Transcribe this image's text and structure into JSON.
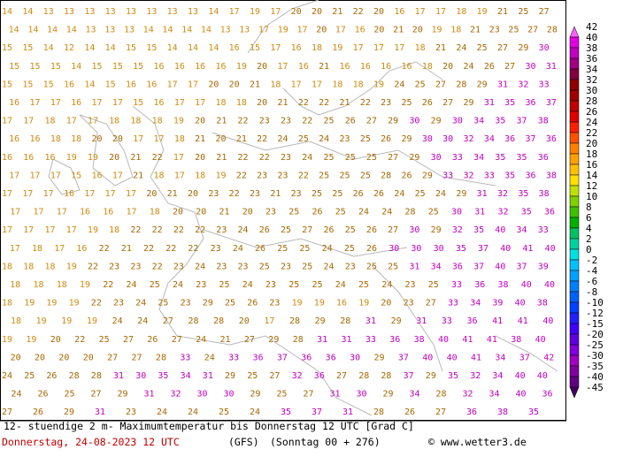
{
  "map": {
    "rows": [
      [
        14,
        14,
        13,
        13,
        13,
        13,
        13,
        13,
        13,
        13,
        14,
        17,
        19,
        17,
        20,
        20,
        21,
        22,
        20,
        16,
        17,
        17,
        18,
        19,
        21,
        25,
        27
      ],
      [
        14,
        14,
        14,
        14,
        13,
        13,
        13,
        14,
        14,
        14,
        14,
        13,
        13,
        17,
        19,
        17,
        20,
        17,
        16,
        20,
        21,
        20,
        19,
        18,
        21,
        23,
        25,
        27,
        28
      ],
      [
        15,
        15,
        14,
        12,
        14,
        14,
        15,
        15,
        14,
        14,
        14,
        16,
        15,
        17,
        16,
        18,
        19,
        17,
        17,
        17,
        18,
        21,
        24,
        25,
        27,
        29,
        30
      ],
      [
        15,
        15,
        15,
        14,
        15,
        15,
        15,
        16,
        16,
        16,
        16,
        19,
        20,
        17,
        16,
        21,
        16,
        16,
        16,
        16,
        18,
        20,
        24,
        26,
        27,
        30,
        31
      ],
      [
        15,
        15,
        15,
        16,
        14,
        15,
        16,
        16,
        17,
        17,
        20,
        20,
        21,
        18,
        17,
        17,
        18,
        18,
        19,
        24,
        25,
        27,
        28,
        29,
        31,
        32,
        33
      ],
      [
        16,
        17,
        17,
        16,
        17,
        17,
        15,
        16,
        17,
        17,
        18,
        18,
        20,
        21,
        22,
        22,
        21,
        22,
        23,
        25,
        26,
        27,
        29,
        31,
        35,
        36,
        37
      ],
      [
        17,
        17,
        18,
        17,
        17,
        18,
        18,
        18,
        19,
        20,
        21,
        22,
        23,
        23,
        22,
        25,
        26,
        27,
        29,
        30,
        29,
        30,
        34,
        35,
        37,
        38
      ],
      [
        16,
        16,
        18,
        18,
        20,
        20,
        17,
        17,
        18,
        21,
        20,
        21,
        22,
        24,
        25,
        24,
        23,
        25,
        26,
        29,
        30,
        30,
        32,
        34,
        36,
        37,
        36
      ],
      [
        16,
        16,
        16,
        19,
        19,
        20,
        21,
        22,
        17,
        20,
        21,
        22,
        22,
        23,
        24,
        25,
        25,
        25,
        27,
        29,
        30,
        33,
        34,
        35,
        35,
        36
      ],
      [
        17,
        17,
        17,
        15,
        16,
        17,
        21,
        18,
        17,
        18,
        19,
        22,
        23,
        23,
        22,
        25,
        25,
        25,
        28,
        26,
        29,
        33,
        32,
        33,
        35,
        36,
        38
      ],
      [
        17,
        17,
        17,
        16,
        17,
        17,
        17,
        20,
        21,
        20,
        23,
        22,
        23,
        21,
        23,
        25,
        25,
        26,
        26,
        24,
        25,
        24,
        29,
        31,
        32,
        35,
        38
      ],
      [
        17,
        17,
        17,
        16,
        16,
        17,
        18,
        20,
        20,
        21,
        20,
        23,
        25,
        26,
        25,
        24,
        24,
        28,
        25,
        30,
        31,
        32,
        35,
        36
      ],
      [
        17,
        17,
        17,
        17,
        19,
        18,
        22,
        22,
        22,
        22,
        23,
        24,
        26,
        25,
        27,
        26,
        25,
        26,
        27,
        30,
        29,
        32,
        35,
        40,
        34,
        33
      ],
      [
        17,
        18,
        17,
        16,
        22,
        21,
        22,
        22,
        22,
        23,
        24,
        26,
        25,
        25,
        24,
        25,
        26,
        30,
        30,
        30,
        35,
        37,
        40,
        41,
        40
      ],
      [
        18,
        18,
        18,
        19,
        22,
        23,
        23,
        22,
        23,
        24,
        23,
        23,
        25,
        23,
        25,
        24,
        23,
        25,
        25,
        31,
        34,
        36,
        37,
        40,
        37,
        39
      ],
      [
        18,
        18,
        18,
        19,
        22,
        24,
        25,
        24,
        23,
        25,
        24,
        23,
        25,
        25,
        24,
        25,
        24,
        23,
        25,
        33,
        36,
        38,
        40,
        40
      ],
      [
        18,
        19,
        19,
        19,
        22,
        23,
        24,
        25,
        23,
        29,
        25,
        26,
        23,
        19,
        19,
        16,
        19,
        20,
        23,
        27,
        33,
        34,
        39,
        40,
        38
      ],
      [
        18,
        19,
        19,
        19,
        24,
        24,
        27,
        28,
        28,
        20,
        17,
        28,
        29,
        28,
        31,
        29,
        31,
        33,
        36,
        41,
        41,
        40
      ],
      [
        19,
        19,
        20,
        22,
        25,
        27,
        26,
        27,
        24,
        21,
        27,
        29,
        28,
        31,
        31,
        33,
        36,
        38,
        40,
        41,
        41,
        38,
        40
      ],
      [
        20,
        20,
        20,
        20,
        27,
        27,
        28,
        33,
        24,
        33,
        36,
        37,
        36,
        36,
        30,
        29,
        37,
        40,
        40,
        41,
        34,
        37,
        42
      ],
      [
        24,
        25,
        26,
        28,
        28,
        31,
        30,
        35,
        34,
        31,
        29,
        25,
        27,
        32,
        36,
        27,
        28,
        28,
        37,
        29,
        35,
        32,
        34,
        40,
        40
      ],
      [
        24,
        26,
        25,
        27,
        29,
        31,
        32,
        30,
        30,
        29,
        25,
        27,
        31,
        30,
        29,
        34,
        28,
        32,
        34,
        40,
        36
      ],
      [
        27,
        26,
        29,
        31,
        23,
        24,
        24,
        25,
        24,
        35,
        37,
        31,
        28,
        26,
        27,
        36,
        38,
        35
      ]
    ],
    "number_colors": [
      {
        "below": 20,
        "color": "#d08a10"
      },
      {
        "below": 30,
        "color": "#a86800"
      },
      {
        "below": 99,
        "color": "#c000c0"
      }
    ]
  },
  "legend": {
    "labels": [
      42,
      40,
      38,
      36,
      34,
      32,
      30,
      28,
      26,
      24,
      22,
      20,
      18,
      16,
      14,
      12,
      10,
      8,
      6,
      4,
      2,
      0,
      -2,
      -4,
      -6,
      -8,
      -10,
      -12,
      -15,
      -20,
      -25,
      -30,
      -35,
      -40,
      -45
    ],
    "colors": [
      "#ff60ff",
      "#e000e0",
      "#c000c0",
      "#a00080",
      "#800040",
      "#900000",
      "#a00000",
      "#c00000",
      "#e00000",
      "#ff2000",
      "#ff5000",
      "#ff8000",
      "#ffa000",
      "#ffc000",
      "#ffe000",
      "#c0e000",
      "#80d000",
      "#40c000",
      "#00b000",
      "#00c060",
      "#00d0a0",
      "#00e0e0",
      "#00c0ff",
      "#00a0ff",
      "#0080ff",
      "#0060ff",
      "#0040ff",
      "#2020ff",
      "#4000ff",
      "#6000e0",
      "#8000e0",
      "#a000c0",
      "#8000a0",
      "#600080",
      "#400060"
    ]
  },
  "footer": {
    "line1": "12- stuendige 2 m- Maximumtemperatur bis Donnerstag 12 UTC [Grad C]",
    "date": "Donnerstag, 24-08-2023  12 UTC",
    "model": "(GFS)",
    "run": "(Sonntag 00 + 276)",
    "credit": "© www.wetter3.de"
  }
}
